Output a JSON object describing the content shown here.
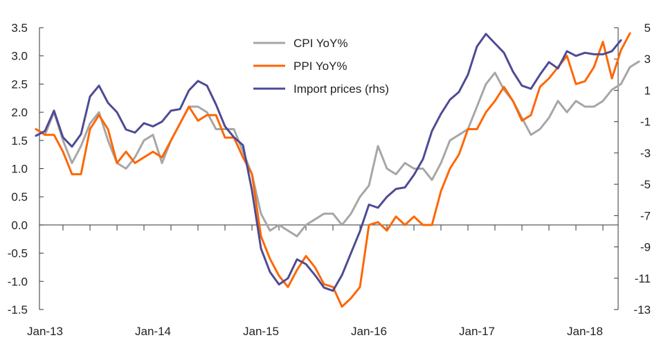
{
  "chart_data": {
    "type": "line",
    "title": "",
    "xlabel": "",
    "ylabel": "",
    "x_tick_labels": [
      "Jan-13",
      "Jan-14",
      "Jan-15",
      "Jan-16",
      "Jan-17",
      "Jan-18"
    ],
    "x_start": "Jan-13",
    "x_end": "Jun-18",
    "ylim_left": [
      -1.5,
      3.5
    ],
    "ylim_right": [
      -13,
      5
    ],
    "left_ticks": [
      "3.5",
      "3.0",
      "2.5",
      "2.0",
      "1.5",
      "1.0",
      "0.5",
      "0.0",
      "-0.5",
      "-1.0",
      "-1.5"
    ],
    "right_ticks": [
      "5",
      "3",
      "1",
      "-1",
      "-3",
      "-5",
      "-7",
      "-9",
      "-11",
      "-13"
    ],
    "grid": false,
    "legend_position": "top-center",
    "series": [
      {
        "name": "CPI YoY%",
        "axis": "left",
        "color": "#a6a6a6",
        "values": [
          1.7,
          1.6,
          2.0,
          1.5,
          1.1,
          1.4,
          1.8,
          2.0,
          1.5,
          1.1,
          1.0,
          1.2,
          1.5,
          1.6,
          1.1,
          1.5,
          1.8,
          2.1,
          2.1,
          2.0,
          1.7,
          1.7,
          1.7,
          1.3,
          0.9,
          0.2,
          -0.1,
          0.0,
          -0.1,
          -0.2,
          0.0,
          0.1,
          0.2,
          0.2,
          0.0,
          0.2,
          0.5,
          0.7,
          1.4,
          1.0,
          0.9,
          1.1,
          1.0,
          1.0,
          0.8,
          1.1,
          1.5,
          1.6,
          1.7,
          2.1,
          2.5,
          2.7,
          2.4,
          2.2,
          1.9,
          1.6,
          1.7,
          1.9,
          2.2,
          2.0,
          2.2,
          2.1,
          2.1,
          2.2,
          2.4,
          2.5,
          2.8,
          2.9
        ]
      },
      {
        "name": "PPI YoY%",
        "axis": "left",
        "color": "#ff6600",
        "values": [
          1.7,
          1.6,
          1.6,
          1.3,
          0.9,
          0.9,
          1.7,
          1.95,
          1.7,
          1.1,
          1.3,
          1.1,
          1.2,
          1.3,
          1.2,
          1.5,
          1.8,
          2.1,
          1.85,
          1.95,
          1.95,
          1.55,
          1.55,
          1.2,
          0.9,
          -0.2,
          -0.6,
          -0.9,
          -1.1,
          -0.8,
          -0.55,
          -0.75,
          -1.05,
          -1.1,
          -1.45,
          -1.3,
          -1.1,
          0.0,
          0.05,
          -0.1,
          0.15,
          0.0,
          0.15,
          0.0,
          0.0,
          0.6,
          1.0,
          1.25,
          1.7,
          1.7,
          2.0,
          2.2,
          2.45,
          2.2,
          1.85,
          1.95,
          2.45,
          2.6,
          2.8,
          3.0,
          2.5,
          2.55,
          2.8,
          3.25,
          2.6,
          3.1,
          3.4
        ]
      },
      {
        "name": "Import prices (rhs)",
        "axis": "right",
        "color": "#4d4b94",
        "values": [
          -1.9,
          -1.6,
          -0.3,
          -2.0,
          -2.6,
          -1.8,
          0.6,
          1.3,
          0.2,
          -0.4,
          -1.5,
          -1.7,
          -1.1,
          -1.3,
          -1.0,
          -0.3,
          -0.2,
          1.0,
          1.6,
          1.3,
          0.1,
          -1.3,
          -2.0,
          -2.5,
          -5.4,
          -9.1,
          -10.6,
          -11.4,
          -11.0,
          -9.8,
          -10.1,
          -10.8,
          -11.6,
          -11.8,
          -10.8,
          -9.4,
          -8.0,
          -6.3,
          -6.5,
          -5.8,
          -5.3,
          -5.2,
          -4.4,
          -3.4,
          -1.6,
          -0.5,
          0.4,
          0.9,
          2.0,
          3.8,
          4.6,
          4.0,
          3.4,
          2.2,
          1.3,
          1.1,
          2.0,
          2.8,
          2.4,
          3.5,
          3.2,
          3.4,
          3.3,
          3.3,
          3.5,
          4.2
        ]
      }
    ]
  }
}
